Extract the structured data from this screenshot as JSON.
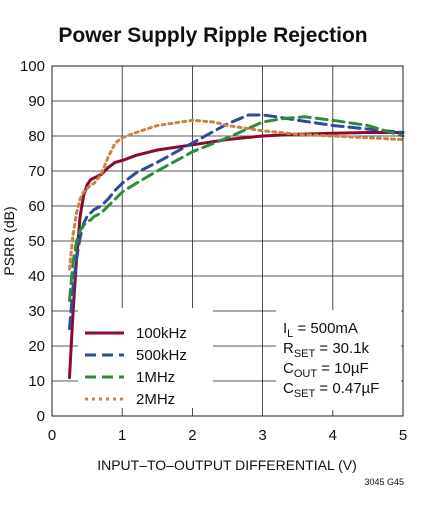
{
  "chart_data": {
    "type": "line",
    "title": "Power Supply Ripple Rejection",
    "xlabel": "INPUT–TO–OUTPUT DIFFERENTIAL (V)",
    "ylabel": "PSRR (dB)",
    "xlim": [
      0,
      5
    ],
    "ylim": [
      0,
      100
    ],
    "xticks": [
      "0",
      "1",
      "2",
      "3",
      "4",
      "5"
    ],
    "yticks": [
      "0",
      "10",
      "20",
      "30",
      "40",
      "50",
      "60",
      "70",
      "80",
      "90",
      "100"
    ],
    "grid": true,
    "legend_position": "bottom-left",
    "figure_id": "3045 G45",
    "series": [
      {
        "name": "100kHz",
        "color": "#8b0a2e",
        "style": "solid",
        "x": [
          0.25,
          0.3,
          0.35,
          0.4,
          0.45,
          0.5,
          0.55,
          0.6,
          0.7,
          0.8,
          0.9,
          1.0,
          1.2,
          1.5,
          2.0,
          2.5,
          3.0,
          3.5,
          4.0,
          4.5,
          5.0
        ],
        "y": [
          11,
          30,
          45,
          57,
          63,
          66,
          67.5,
          68,
          69,
          71,
          72.5,
          73,
          74.5,
          76,
          77.5,
          79,
          80,
          80.5,
          80.8,
          81,
          81
        ]
      },
      {
        "name": "500kHz",
        "color": "#2b4c9b",
        "style": "dash",
        "x": [
          0.25,
          0.3,
          0.35,
          0.4,
          0.45,
          0.5,
          0.55,
          0.6,
          0.7,
          0.8,
          0.9,
          1.0,
          1.2,
          1.5,
          2.0,
          2.5,
          2.8,
          3.0,
          3.2,
          3.5,
          4.0,
          4.5,
          5.0
        ],
        "y": [
          25,
          37,
          45,
          51,
          55,
          57,
          58,
          59,
          60,
          62,
          64.5,
          66.5,
          69.5,
          72.5,
          78,
          83.5,
          86,
          86,
          85.5,
          84.5,
          83,
          82,
          81
        ]
      },
      {
        "name": "1MHz",
        "color": "#2e8a3e",
        "style": "dash",
        "x": [
          0.25,
          0.3,
          0.35,
          0.4,
          0.45,
          0.5,
          0.55,
          0.6,
          0.7,
          0.8,
          0.9,
          1.0,
          1.2,
          1.5,
          2.0,
          2.5,
          3.0,
          3.3,
          3.6,
          4.0,
          4.5,
          5.0
        ],
        "y": [
          33,
          44,
          50,
          53,
          54.5,
          55.5,
          56,
          57,
          58,
          60,
          62,
          64,
          66.5,
          70,
          75.5,
          79.5,
          84,
          85,
          85.5,
          84.5,
          83,
          80
        ]
      },
      {
        "name": "2MHz",
        "color": "#c8844a",
        "style": "dot",
        "x": [
          0.25,
          0.3,
          0.35,
          0.4,
          0.45,
          0.5,
          0.55,
          0.6,
          0.7,
          0.8,
          0.9,
          1.0,
          1.2,
          1.5,
          2.0,
          2.3,
          2.5,
          3.0,
          3.5,
          4.0,
          4.5,
          5.0
        ],
        "y": [
          42,
          52,
          58,
          62,
          64,
          65,
          66,
          66.5,
          69,
          74,
          78,
          79.5,
          81,
          83,
          84.5,
          84,
          83,
          81.5,
          80.5,
          80,
          79.5,
          79
        ]
      }
    ],
    "annotation": [
      {
        "name": "I",
        "sub": "L",
        "value": " = 500mA"
      },
      {
        "name": "R",
        "sub": "SET",
        "value": " = 30.1k"
      },
      {
        "name": "C",
        "sub": "OUT",
        "value": " = 10µF"
      },
      {
        "name": "C",
        "sub": "SET",
        "value": " = 0.47µF"
      }
    ]
  }
}
